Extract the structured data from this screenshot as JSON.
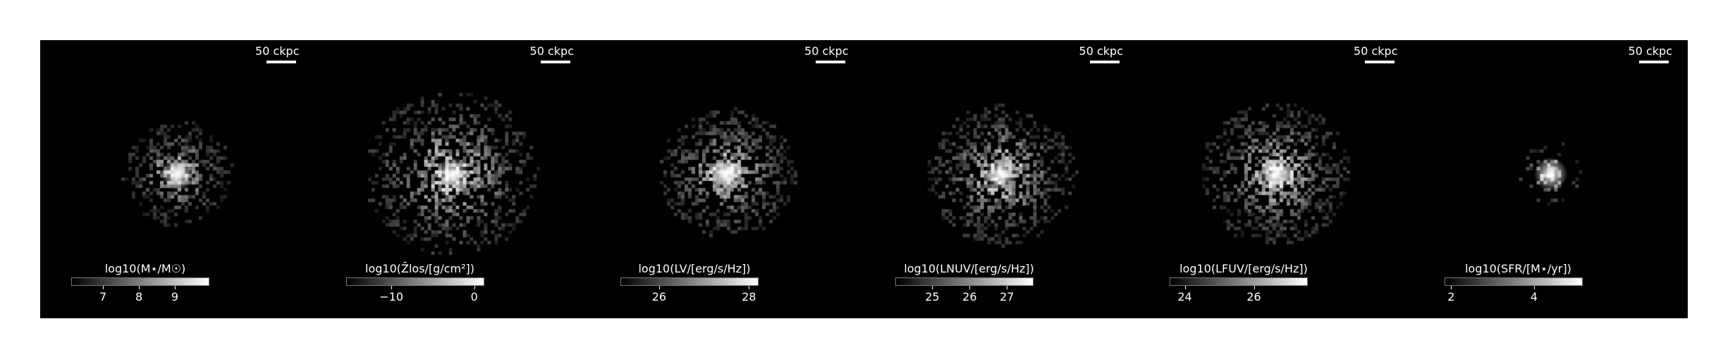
{
  "panels": [
    {
      "scale_label": "50 ckpc",
      "colorbar_label": "log10(M⋆/M☉)",
      "ticks": [
        {
          "label": "7",
          "frac": 0.23
        },
        {
          "label": "8",
          "frac": 0.49
        },
        {
          "label": "9",
          "frac": 0.75
        }
      ],
      "image": {
        "spread": 0.3,
        "brightness": 0.9,
        "noise": 0.3,
        "count": 420
      }
    },
    {
      "scale_label": "50 ckpc",
      "colorbar_label": "log10(Z̄los/[g/cm²])",
      "ticks": [
        {
          "label": "−10",
          "frac": 0.33
        },
        {
          "label": "0",
          "frac": 0.93
        }
      ],
      "image": {
        "spread": 0.55,
        "brightness": 1.0,
        "noise": 0.55,
        "count": 900
      }
    },
    {
      "scale_label": "50 ckpc",
      "colorbar_label": "log10(LV/[erg/s/Hz])",
      "ticks": [
        {
          "label": "26",
          "frac": 0.28
        },
        {
          "label": "28",
          "frac": 0.93
        }
      ],
      "image": {
        "spread": 0.4,
        "brightness": 1.0,
        "noise": 0.45,
        "count": 700
      }
    },
    {
      "scale_label": "50 ckpc",
      "colorbar_label": "log10(LNUV/[erg/s/Hz])",
      "ticks": [
        {
          "label": "25",
          "frac": 0.27
        },
        {
          "label": "26",
          "frac": 0.54
        },
        {
          "label": "27",
          "frac": 0.81
        }
      ],
      "image": {
        "spread": 0.45,
        "brightness": 1.0,
        "noise": 0.5,
        "count": 800
      }
    },
    {
      "scale_label": "50 ckpc",
      "colorbar_label": "log10(LFUV/[erg/s/Hz])",
      "ticks": [
        {
          "label": "24",
          "frac": 0.11
        },
        {
          "label": "26",
          "frac": 0.61
        }
      ],
      "image": {
        "spread": 0.45,
        "brightness": 1.0,
        "noise": 0.5,
        "count": 850
      }
    },
    {
      "scale_label": "50 ckpc",
      "colorbar_label": "log10(SFR/[M⋆/yr])",
      "ticks": [
        {
          "label": "2",
          "frac": 0.05
        },
        {
          "label": "4",
          "frac": 0.65
        }
      ],
      "image": {
        "spread": 0.12,
        "brightness": 1.0,
        "noise": 0.1,
        "count": 60
      }
    }
  ]
}
